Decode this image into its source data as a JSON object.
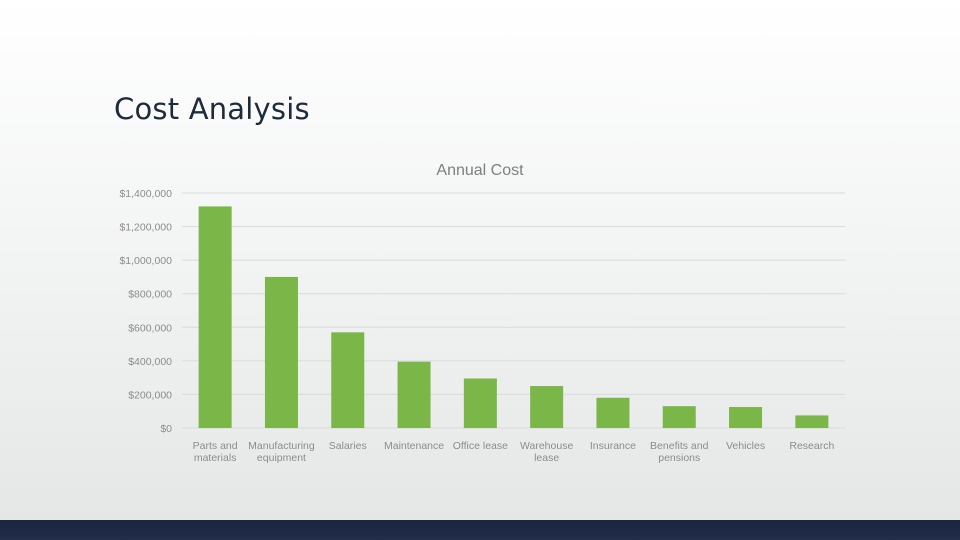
{
  "slide": {
    "title": "Cost Analysis"
  },
  "colors": {
    "bar": "#7ab648",
    "grid": "#d9dbdb",
    "tick_text": "#8c8c8c",
    "title_text": "#7f7f7f",
    "band": "#1f2a44"
  },
  "chart_data": {
    "type": "bar",
    "title": "Annual Cost",
    "xlabel": "",
    "ylabel": "",
    "ylim": [
      0,
      1400000
    ],
    "grid": true,
    "legend": "none",
    "yticks": [
      {
        "value": 0,
        "label": "$0"
      },
      {
        "value": 200000,
        "label": "$200,000"
      },
      {
        "value": 400000,
        "label": "$400,000"
      },
      {
        "value": 600000,
        "label": "$600,000"
      },
      {
        "value": 800000,
        "label": "$800,000"
      },
      {
        "value": 1000000,
        "label": "$1,000,000"
      },
      {
        "value": 1200000,
        "label": "$1,200,000"
      },
      {
        "value": 1400000,
        "label": "$1,400,000"
      }
    ],
    "categories": [
      [
        "Parts and",
        "materials"
      ],
      [
        "Manufacturing",
        "equipment"
      ],
      [
        "Salaries"
      ],
      [
        "Maintenance"
      ],
      [
        "Office lease"
      ],
      [
        "Warehouse",
        "lease"
      ],
      [
        "Insurance"
      ],
      [
        "Benefits and",
        "pensions"
      ],
      [
        "Vehicles"
      ],
      [
        "Research"
      ]
    ],
    "values": [
      1320000,
      900000,
      570000,
      395000,
      295000,
      250000,
      180000,
      130000,
      125000,
      75000
    ]
  }
}
